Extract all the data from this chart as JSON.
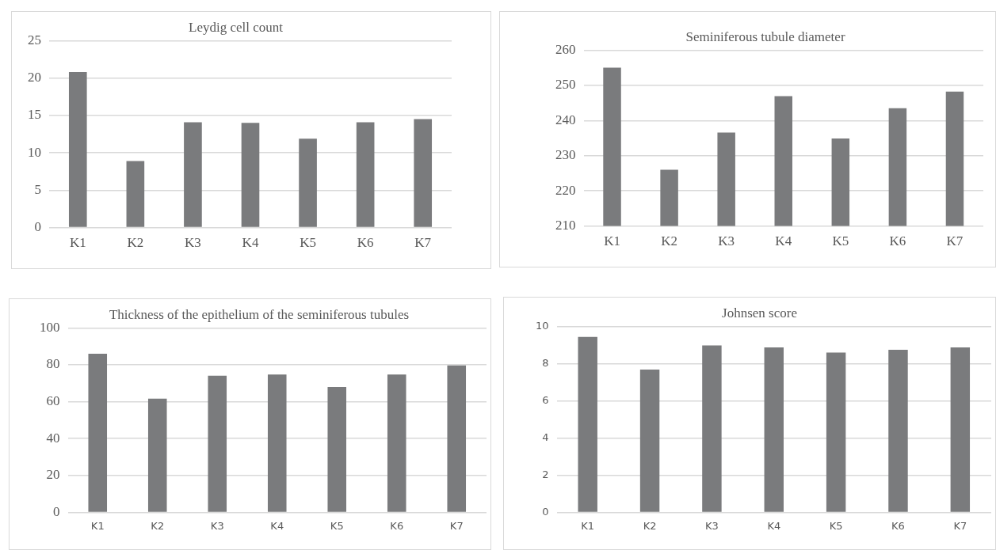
{
  "chart_data": [
    {
      "type": "bar",
      "title": "Leydig cell count",
      "categories": [
        "K1",
        "K2",
        "K3",
        "K4",
        "K5",
        "K6",
        "K7"
      ],
      "values": [
        20.8,
        8.9,
        14.1,
        14.0,
        11.9,
        14.1,
        14.5
      ],
      "color": "#7a7b7d",
      "ylim": [
        0,
        25
      ],
      "yticks": [
        0,
        5,
        10,
        15,
        20,
        25
      ],
      "grid": "y"
    },
    {
      "type": "bar",
      "title": "Seminiferous tubule diameter",
      "categories": [
        "K1",
        "K2",
        "K3",
        "K4",
        "K5",
        "K6",
        "K7"
      ],
      "values": [
        255.0,
        226.0,
        236.6,
        246.9,
        234.9,
        243.5,
        248.2
      ],
      "color": "#7a7b7d",
      "ylim": [
        210,
        260
      ],
      "yticks": [
        210,
        220,
        230,
        240,
        250,
        260
      ],
      "grid": "y"
    },
    {
      "type": "bar",
      "title": "Thickness of the epithelium of the seminiferous tubules",
      "categories": [
        "K1",
        "K2",
        "K3",
        "K4",
        "K5",
        "K6",
        "K7"
      ],
      "values": [
        86.0,
        61.7,
        74.1,
        74.7,
        68.0,
        74.7,
        79.7
      ],
      "color": "#7a7b7d",
      "ylim": [
        0,
        100
      ],
      "yticks": [
        0,
        20,
        40,
        60,
        80,
        100
      ],
      "grid": "y"
    },
    {
      "type": "bar",
      "title": "Johnsen score",
      "categories": [
        "K1",
        "K2",
        "K3",
        "K4",
        "K5",
        "K6",
        "K7"
      ],
      "values": [
        9.43,
        7.68,
        8.97,
        8.87,
        8.59,
        8.74,
        8.87
      ],
      "color": "#7a7b7d",
      "ylim": [
        0,
        10
      ],
      "yticks": [
        0,
        2,
        4,
        6,
        8,
        10
      ],
      "grid": "y"
    }
  ]
}
